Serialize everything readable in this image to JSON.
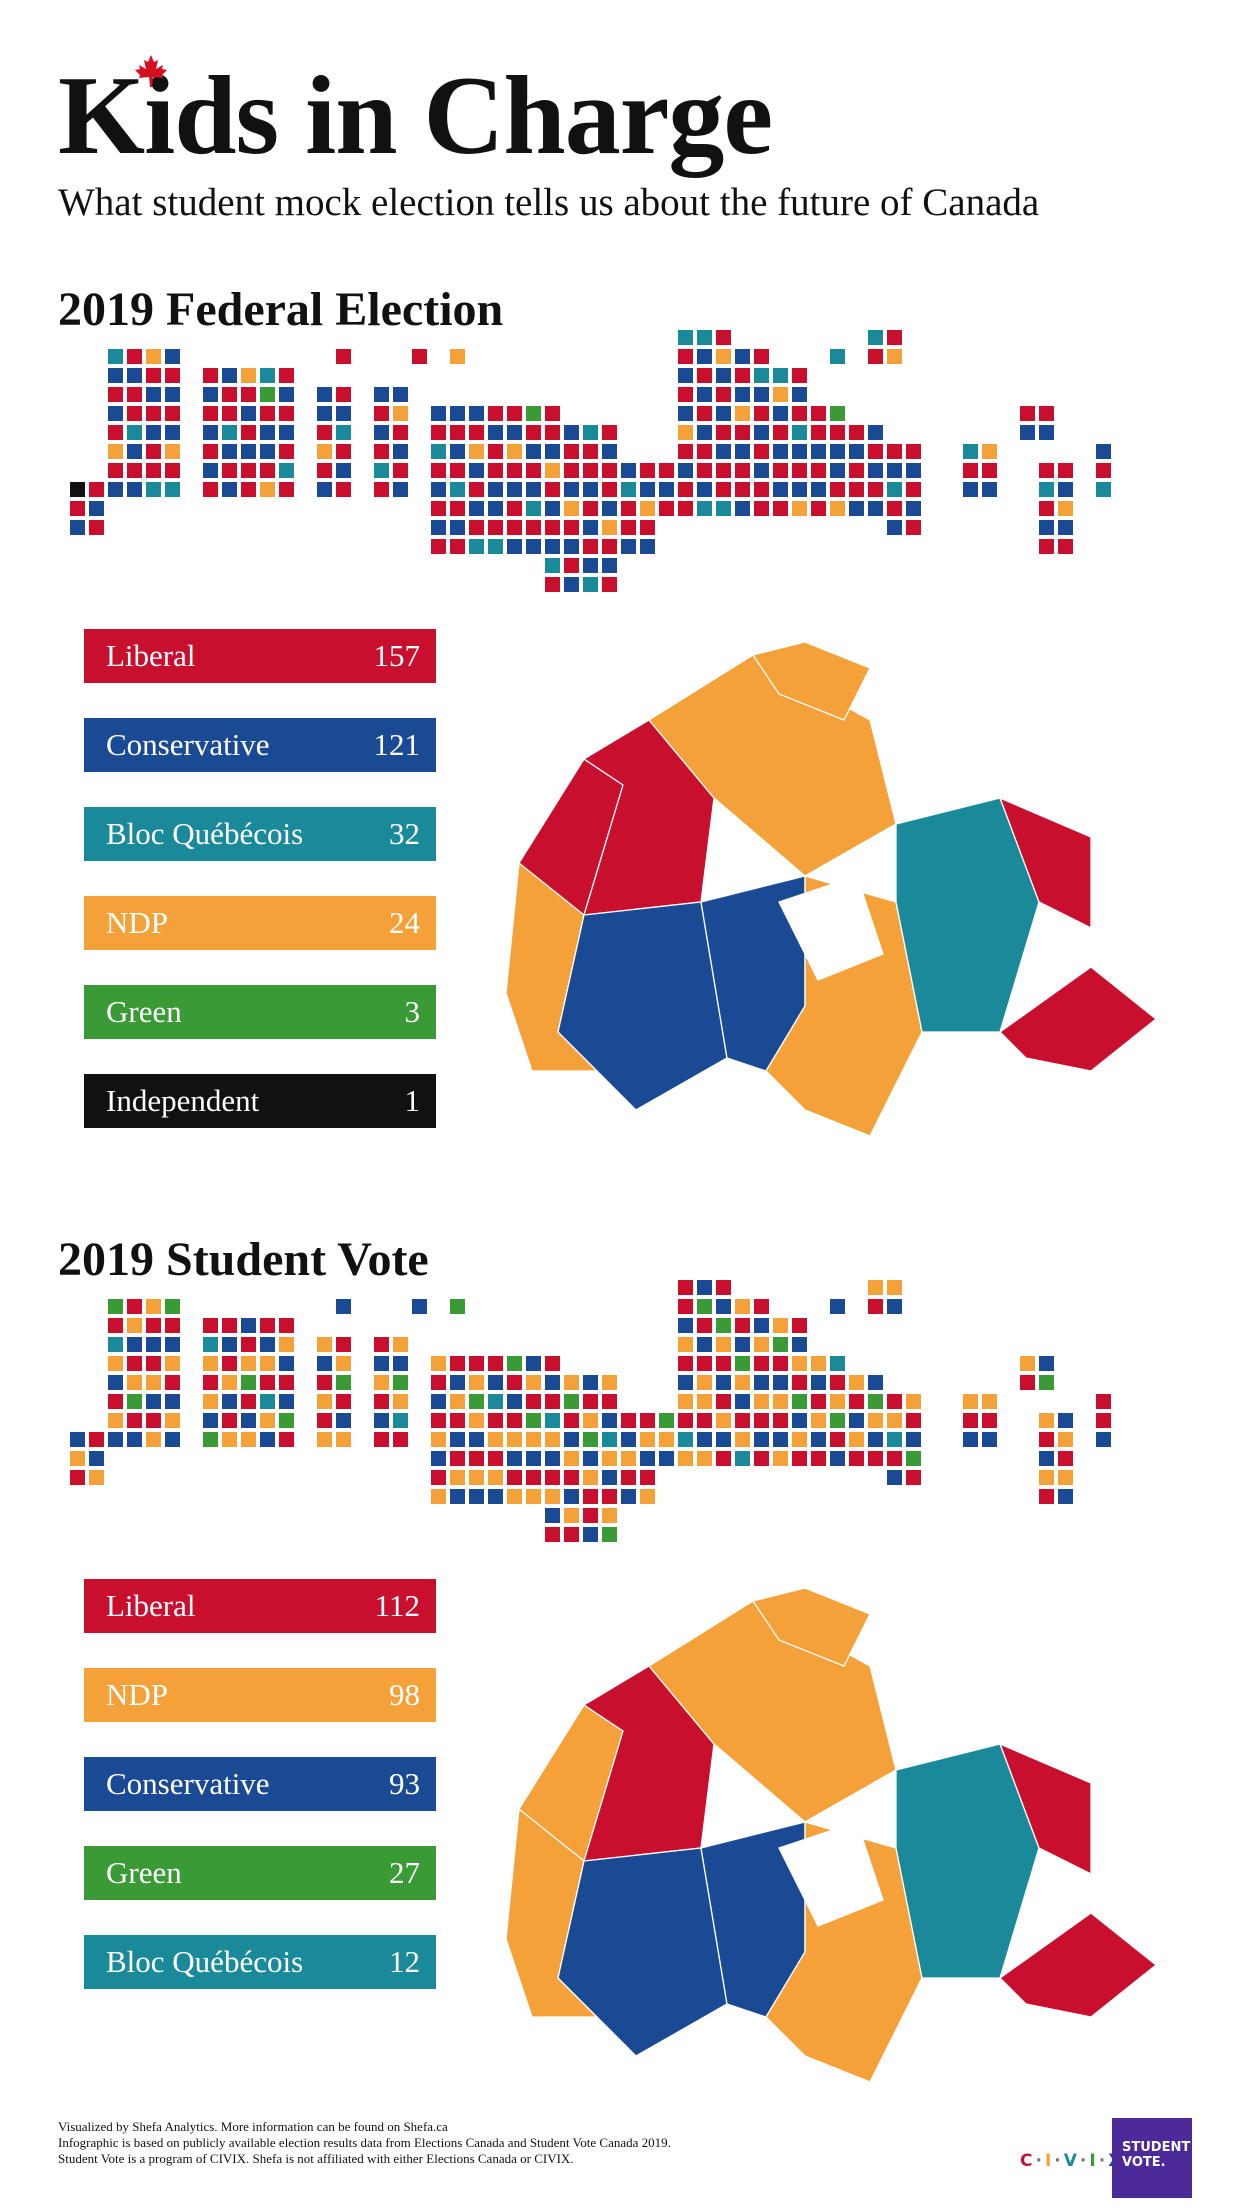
{
  "header": {
    "title": "Kids in Charge",
    "subtitle": "What student mock election tells us about the future of Canada"
  },
  "colors": {
    "Liberal": "#c8102e",
    "Conservative": "#1a4a94",
    "Bloc Québécois": "#1a8a9a",
    "NDP": "#f5a13a",
    "Green": "#3a9a35",
    "Independent": "#111111"
  },
  "chart_data": [
    {
      "type": "bar",
      "title": "2019 Federal Election",
      "categories": [
        "Liberal",
        "Conservative",
        "Bloc Québécois",
        "NDP",
        "Green",
        "Independent"
      ],
      "values": [
        157,
        121,
        32,
        24,
        3,
        1
      ]
    },
    {
      "type": "bar",
      "title": "2019 Student Vote",
      "categories": [
        "Liberal",
        "NDP",
        "Conservative",
        "Green",
        "Bloc Québécois"
      ],
      "values": [
        112,
        98,
        93,
        27,
        12
      ]
    }
  ],
  "footer": {
    "line1": "Visualized by Shefa Analytics. More information can be found on Shefa.ca",
    "line2": "Infographic is based on publicly available election results data from Elections Canada and Student Vote Canada 2019.",
    "line3": "Student Vote is a program of CIVIX. Shefa is not affiliated with either Elections Canada or CIVIX.",
    "civix": "C·I·V·I·X",
    "sv_line1": "STUDENT",
    "sv_line2": "VOTE."
  }
}
